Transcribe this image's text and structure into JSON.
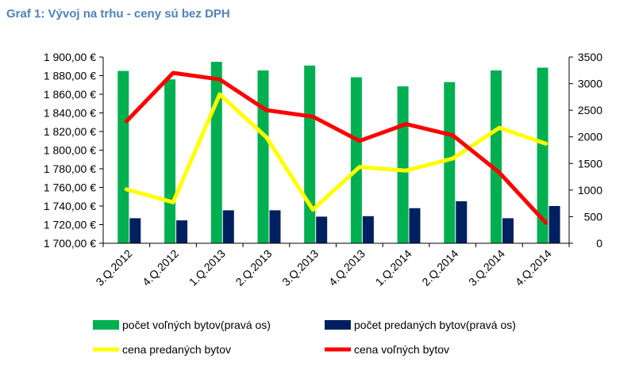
{
  "title": "Graf 1: Vývoj na trhu - ceny sú bez DPH",
  "chart_data": {
    "type": "bar",
    "categories": [
      "3.Q.2012",
      "4.Q.2012",
      "1.Q.2013",
      "2.Q.2013",
      "3.Q.2013",
      "4.Q.2013",
      "1.Q.2014",
      "2.Q.2014",
      "3.Q.2014",
      "4.Q.2014"
    ],
    "left_axis": {
      "ylim": [
        1700,
        1900
      ],
      "ticks": [
        1700,
        1720,
        1740,
        1760,
        1780,
        1800,
        1820,
        1840,
        1860,
        1880,
        1900
      ],
      "tick_labels": [
        "1 700,00 €",
        "1 720,00 €",
        "1 740,00 €",
        "1 760,00 €",
        "1 780,00 €",
        "1 800,00 €",
        "1 820,00 €",
        "1 840,00 €",
        "1 860,00 €",
        "1 880,00 €",
        "1 900,00 €"
      ]
    },
    "right_axis": {
      "ylim": [
        0,
        3500
      ],
      "ticks": [
        0,
        500,
        1000,
        1500,
        2000,
        2500,
        3000,
        3500
      ],
      "tick_labels": [
        "0",
        "500",
        "1000",
        "1500",
        "2000",
        "2500",
        "3000",
        "3500"
      ]
    },
    "series": [
      {
        "name": "počet voľných bytov(pravá os)",
        "type": "bar",
        "axis": "right",
        "color": "#00b050",
        "values": [
          3240,
          3080,
          3410,
          3250,
          3340,
          3120,
          2950,
          3030,
          3250,
          3300
        ]
      },
      {
        "name": "počet predaných bytov(pravá os)",
        "type": "bar",
        "axis": "right",
        "color": "#002060",
        "values": [
          470,
          430,
          620,
          620,
          500,
          510,
          660,
          790,
          470,
          700
        ]
      },
      {
        "name": "cena predaných bytov",
        "type": "line",
        "axis": "left",
        "color": "#ffff00",
        "values": [
          1758,
          1744,
          1860,
          1814,
          1736,
          1782,
          1778,
          1791,
          1824,
          1807
        ]
      },
      {
        "name": "cena voľných bytov",
        "type": "line",
        "axis": "left",
        "color": "#ff0000",
        "values": [
          1831,
          1883,
          1876,
          1843,
          1836,
          1810,
          1828,
          1816,
          1776,
          1722
        ]
      }
    ],
    "legend_position": "bottom",
    "grid": false
  }
}
